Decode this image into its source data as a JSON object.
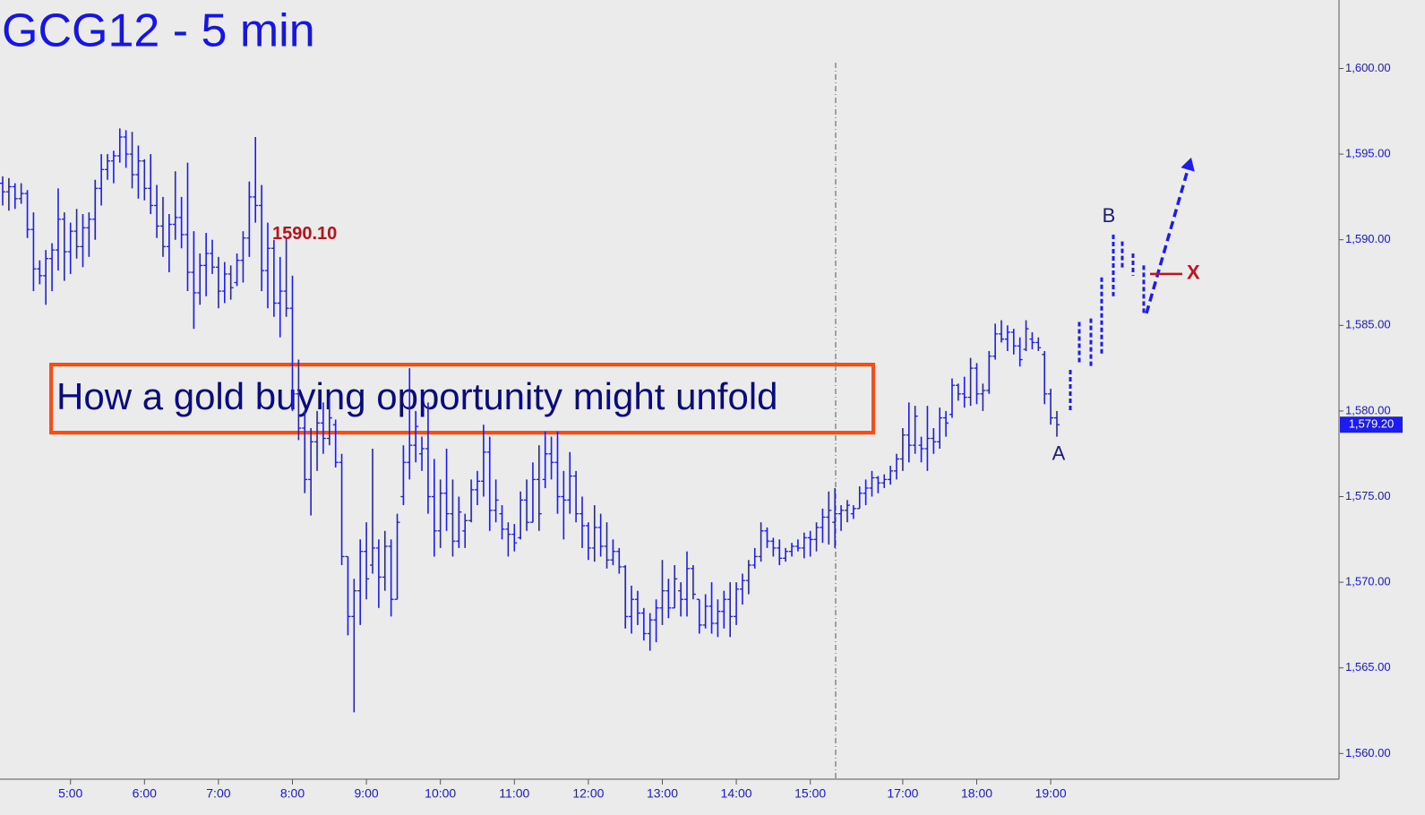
{
  "chart_data": {
    "type": "ohlc",
    "title": "GCG12 - 5 min",
    "annotation": "How a gold buying opportunity might unfold",
    "color": "#1c1cf0",
    "categories": [
      null,
      null,
      null,
      null,
      null,
      null,
      null,
      null,
      null,
      null,
      null,
      "5:00",
      null,
      null,
      null,
      null,
      null,
      null,
      null,
      null,
      null,
      null,
      null,
      "6:00",
      null,
      null,
      null,
      null,
      null,
      null,
      null,
      null,
      null,
      null,
      null,
      "7:00",
      null,
      null,
      null,
      null,
      null,
      null,
      null,
      null,
      null,
      null,
      null,
      "8:00",
      null,
      null,
      null,
      null,
      null,
      null,
      null,
      null,
      null,
      null,
      null,
      "9:00",
      null,
      null,
      null,
      null,
      null,
      null,
      null,
      null,
      null,
      null,
      null,
      "10:00",
      null,
      null,
      null,
      null,
      null,
      null,
      null,
      null,
      null,
      null,
      null,
      "11:00",
      null,
      null,
      null,
      null,
      null,
      null,
      null,
      null,
      null,
      null,
      null,
      "12:00",
      null,
      null,
      null,
      null,
      null,
      null,
      null,
      null,
      null,
      null,
      null,
      "13:00",
      null,
      null,
      null,
      null,
      null,
      null,
      null,
      null,
      null,
      null,
      null,
      "14:00",
      null,
      null,
      null,
      null,
      null,
      null,
      null,
      null,
      null,
      null,
      null,
      "15:00",
      null,
      null,
      null,
      null,
      null,
      null,
      null,
      null,
      null,
      null,
      null,
      null,
      null,
      null,
      "17:00",
      null,
      null,
      null,
      null,
      null,
      null,
      null,
      null,
      null,
      null,
      null,
      "18:00",
      null,
      null,
      null,
      null,
      null,
      null,
      null,
      null,
      null,
      null,
      null,
      "19:00",
      null
    ],
    "bars": [
      [
        1593.3,
        1593.7,
        1592.0,
        1592.8
      ],
      [
        1592.8,
        1593.6,
        1591.7,
        1593.1
      ],
      [
        1593.1,
        1593.3,
        1591.8,
        1592.4
      ],
      [
        1592.4,
        1593.3,
        1592.1,
        1592.7
      ],
      [
        1592.7,
        1592.9,
        1590.1,
        1590.6
      ],
      [
        1590.6,
        1591.6,
        1587.0,
        1588.3
      ],
      [
        1588.3,
        1588.8,
        1587.4,
        1587.9
      ],
      [
        1587.9,
        1589.4,
        1586.2,
        1588.9
      ],
      [
        1588.9,
        1589.8,
        1587.0,
        1589.4
      ],
      [
        1589.4,
        1593.0,
        1588.2,
        1591.2
      ],
      [
        1591.2,
        1591.6,
        1587.6,
        1589.3
      ],
      [
        1589.3,
        1591.0,
        1588.0,
        1590.5
      ],
      [
        1590.5,
        1591.8,
        1588.9,
        1589.6
      ],
      [
        1589.6,
        1591.5,
        1588.4,
        1590.7
      ],
      [
        1590.7,
        1591.6,
        1589.0,
        1591.2
      ],
      [
        1591.2,
        1593.5,
        1590.0,
        1593.0
      ],
      [
        1593.0,
        1595.0,
        1592.0,
        1594.1
      ],
      [
        1594.1,
        1595.0,
        1593.5,
        1594.6
      ],
      [
        1594.6,
        1595.2,
        1593.3,
        1594.9
      ],
      [
        1594.9,
        1596.5,
        1594.5,
        1596.0
      ],
      [
        1596.0,
        1596.4,
        1594.2,
        1595.0
      ],
      [
        1595.0,
        1596.3,
        1593.0,
        1593.8
      ],
      [
        1593.8,
        1595.5,
        1592.4,
        1594.6
      ],
      [
        1594.6,
        1594.7,
        1592.3,
        1593.0
      ],
      [
        1593.0,
        1595.0,
        1591.5,
        1592.0
      ],
      [
        1592.0,
        1593.2,
        1590.1,
        1590.8
      ],
      [
        1590.8,
        1592.5,
        1589.0,
        1589.6
      ],
      [
        1589.6,
        1591.5,
        1588.1,
        1590.9
      ],
      [
        1590.9,
        1594.0,
        1590.0,
        1591.3
      ],
      [
        1591.3,
        1592.5,
        1589.5,
        1590.3
      ],
      [
        1590.3,
        1594.5,
        1587.0,
        1588.1
      ],
      [
        1588.1,
        1590.5,
        1584.8,
        1586.9
      ],
      [
        1586.9,
        1589.2,
        1586.2,
        1588.5
      ],
      [
        1588.5,
        1590.4,
        1586.7,
        1589.2
      ],
      [
        1589.2,
        1590.0,
        1588.0,
        1588.4
      ],
      [
        1588.4,
        1589.0,
        1586.0,
        1587.0
      ],
      [
        1587.0,
        1588.7,
        1586.3,
        1588.0
      ],
      [
        1588.0,
        1588.5,
        1586.5,
        1587.2
      ],
      [
        1587.5,
        1589.2,
        1587.3,
        1588.8
      ],
      [
        1588.8,
        1590.5,
        1587.5,
        1590.1
      ],
      [
        1590.1,
        1593.4,
        1589.0,
        1592.5
      ],
      [
        1592.5,
        1596.0,
        1591.0,
        1592.0
      ],
      [
        1592.0,
        1593.2,
        1587.0,
        1588.2
      ],
      [
        1588.2,
        1591.0,
        1586.0,
        1589.5
      ],
      [
        1589.5,
        1590.0,
        1585.5,
        1586.3
      ],
      [
        1586.3,
        1589.0,
        1584.3,
        1587.0
      ],
      [
        1587.0,
        1590.1,
        1585.5,
        1586.0
      ],
      [
        1586.0,
        1587.9,
        1580.0,
        1581.0
      ],
      [
        1581.0,
        1583.0,
        1578.3,
        1579.0
      ],
      [
        1579.0,
        1580.0,
        1575.2,
        1576.0
      ],
      [
        1576.0,
        1579.0,
        1573.9,
        1578.2
      ],
      [
        1578.2,
        1580.0,
        1576.5,
        1579.3
      ],
      [
        1579.3,
        1580.5,
        1577.5,
        1578.4
      ],
      [
        1578.4,
        1580.8,
        1578.0,
        1579.6
      ],
      [
        1579.2,
        1579.5,
        1576.7,
        1577.0
      ],
      [
        1577.0,
        1577.5,
        1571.0,
        1571.5
      ],
      [
        1571.5,
        1571.5,
        1566.9,
        1568.0
      ],
      [
        1568.0,
        1570.2,
        1562.4,
        1569.5
      ],
      [
        1569.5,
        1572.5,
        1567.5,
        1571.8
      ],
      [
        1571.8,
        1573.5,
        1569.0,
        1570.2
      ],
      [
        1571.0,
        1577.8,
        1570.5,
        1572.0
      ],
      [
        1572.0,
        1572.5,
        1568.5,
        1570.3
      ],
      [
        1570.3,
        1573.0,
        1569.5,
        1572.1
      ],
      [
        1572.1,
        1572.5,
        1568.0,
        1569.0
      ],
      [
        1569.0,
        1574.0,
        1569.0,
        1573.5
      ],
      [
        1575.0,
        1578.0,
        1574.5,
        1577.0
      ],
      [
        1577.0,
        1582.5,
        1576.0,
        1578.0
      ],
      [
        1578.0,
        1580.0,
        1577.0,
        1579.1
      ],
      [
        1577.5,
        1578.5,
        1576.5,
        1577.8
      ],
      [
        1577.8,
        1580.5,
        1574.0,
        1575.0
      ],
      [
        1575.0,
        1577.2,
        1571.5,
        1573.0
      ],
      [
        1573.0,
        1576.0,
        1572.0,
        1575.2
      ],
      [
        1575.2,
        1577.8,
        1573.0,
        1574.0
      ],
      [
        1574.0,
        1576.0,
        1571.5,
        1572.4
      ],
      [
        1572.4,
        1575.0,
        1572.0,
        1574.1
      ],
      [
        1573.0,
        1574.0,
        1572.0,
        1573.6
      ],
      [
        1573.6,
        1576.0,
        1573.5,
        1575.4
      ],
      [
        1575.4,
        1576.5,
        1574.5,
        1575.9
      ],
      [
        1575.9,
        1579.2,
        1575.0,
        1577.6
      ],
      [
        1577.6,
        1578.5,
        1573.0,
        1574.2
      ],
      [
        1574.2,
        1576.0,
        1573.5,
        1574.8
      ],
      [
        1574.0,
        1574.5,
        1572.5,
        1573.1
      ],
      [
        1573.1,
        1573.5,
        1571.5,
        1572.8
      ],
      [
        1572.8,
        1573.4,
        1571.8,
        1572.3
      ],
      [
        1572.6,
        1575.3,
        1572.5,
        1574.8
      ],
      [
        1574.8,
        1576.0,
        1573.0,
        1573.5
      ],
      [
        1573.5,
        1577.0,
        1573.5,
        1576.0
      ],
      [
        1576.0,
        1578.0,
        1573.0,
        1574.0
      ],
      [
        1576.0,
        1578.8,
        1575.5,
        1577.5
      ],
      [
        1577.5,
        1578.5,
        1576.0,
        1577.0
      ],
      [
        1577.0,
        1578.8,
        1574.0,
        1575.0
      ],
      [
        1575.0,
        1576.5,
        1572.5,
        1574.8
      ],
      [
        1574.8,
        1577.6,
        1574.0,
        1576.2
      ],
      [
        1576.2,
        1576.5,
        1573.5,
        1574.0
      ],
      [
        1574.0,
        1575.0,
        1572.0,
        1573.3
      ],
      [
        1573.3,
        1573.5,
        1571.3,
        1572.0
      ],
      [
        1572.0,
        1574.5,
        1571.2,
        1573.2
      ],
      [
        1573.2,
        1574.0,
        1571.5,
        1572.1
      ],
      [
        1572.1,
        1573.5,
        1570.8,
        1571.3
      ],
      [
        1571.3,
        1572.5,
        1571.0,
        1571.8
      ],
      [
        1571.8,
        1572.0,
        1570.5,
        1570.9
      ],
      [
        1570.9,
        1571.0,
        1567.3,
        1568.0
      ],
      [
        1568.0,
        1569.8,
        1567.0,
        1569.0
      ],
      [
        1569.0,
        1569.5,
        1567.5,
        1568.2
      ],
      [
        1568.2,
        1568.5,
        1566.6,
        1567.0
      ],
      [
        1567.0,
        1568.2,
        1566.0,
        1567.8
      ],
      [
        1567.8,
        1569.0,
        1566.5,
        1568.5
      ],
      [
        1568.5,
        1571.3,
        1567.5,
        1569.5
      ],
      [
        1569.5,
        1570.2,
        1567.9,
        1568.5
      ],
      [
        1568.5,
        1571.0,
        1568.5,
        1570.2
      ],
      [
        1569.5,
        1570.0,
        1568.0,
        1569.0
      ],
      [
        1569.0,
        1571.8,
        1568.0,
        1570.8
      ],
      [
        1570.8,
        1571.0,
        1569.0,
        1569.3
      ],
      [
        1569.0,
        1569.0,
        1567.0,
        1567.5
      ],
      [
        1567.5,
        1569.3,
        1567.3,
        1568.6
      ],
      [
        1568.6,
        1570.0,
        1567.0,
        1567.6
      ],
      [
        1567.6,
        1569.0,
        1566.8,
        1568.3
      ],
      [
        1568.3,
        1569.5,
        1567.3,
        1569.0
      ],
      [
        1569.0,
        1570.0,
        1566.8,
        1568.0
      ],
      [
        1568.0,
        1570.0,
        1567.5,
        1569.6
      ],
      [
        1569.6,
        1570.5,
        1568.7,
        1570.1
      ],
      [
        1570.1,
        1571.3,
        1569.3,
        1571.0
      ],
      [
        1571.0,
        1572.0,
        1570.8,
        1571.5
      ],
      [
        1571.5,
        1573.5,
        1571.2,
        1573.0
      ],
      [
        1573.0,
        1573.2,
        1572.0,
        1572.4
      ],
      [
        1572.4,
        1572.6,
        1571.5,
        1572.0
      ],
      [
        1572.0,
        1572.5,
        1571.0,
        1571.4
      ],
      [
        1571.4,
        1572.0,
        1571.2,
        1571.8
      ],
      [
        1571.8,
        1572.3,
        1571.5,
        1572.1
      ],
      [
        1572.1,
        1572.5,
        1571.8,
        1572.0
      ],
      [
        1572.0,
        1572.9,
        1571.4,
        1572.6
      ],
      [
        1572.6,
        1573.0,
        1571.5,
        1572.5
      ],
      [
        1572.5,
        1573.5,
        1571.8,
        1573.2
      ],
      [
        1573.2,
        1574.3,
        1572.3,
        1573.8
      ],
      [
        1573.8,
        1575.3,
        1572.2,
        1574.2
      ],
      [
        1573.5,
        1575.5,
        1572.0,
        1574.0
      ],
      [
        1574.0,
        1574.5,
        1573.0,
        1574.2
      ],
      [
        1574.2,
        1574.8,
        1573.5,
        1574.5
      ],
      [
        1574.0,
        1574.5,
        1573.7,
        1574.3
      ],
      [
        1574.3,
        1575.6,
        1574.3,
        1575.2
      ],
      [
        1575.2,
        1576.0,
        1574.5,
        1575.5
      ],
      [
        1575.5,
        1576.5,
        1575.0,
        1576.1
      ],
      [
        1576.1,
        1576.2,
        1575.2,
        1575.8
      ],
      [
        1575.8,
        1576.3,
        1575.5,
        1576.0
      ],
      [
        1576.0,
        1576.8,
        1575.7,
        1576.5
      ],
      [
        1576.5,
        1577.5,
        1576.0,
        1577.2
      ],
      [
        1577.2,
        1579.0,
        1576.5,
        1578.6
      ],
      [
        1578.6,
        1580.5,
        1577.0,
        1578.0
      ],
      [
        1578.0,
        1580.3,
        1577.5,
        1579.7
      ],
      [
        1578.0,
        1578.5,
        1577.0,
        1577.8
      ],
      [
        1577.8,
        1580.3,
        1576.5,
        1578.4
      ],
      [
        1578.4,
        1579.0,
        1577.5,
        1578.2
      ],
      [
        1578.2,
        1580.2,
        1577.8,
        1579.6
      ],
      [
        1579.6,
        1580.0,
        1578.5,
        1579.3
      ],
      [
        1579.8,
        1581.9,
        1579.6,
        1581.5
      ],
      [
        1581.5,
        1581.6,
        1580.6,
        1581.0
      ],
      [
        1581.0,
        1582.0,
        1580.2,
        1580.8
      ],
      [
        1580.8,
        1583.1,
        1580.3,
        1582.5
      ],
      [
        1582.5,
        1582.8,
        1580.4,
        1581.0
      ],
      [
        1581.0,
        1581.6,
        1580.0,
        1581.2
      ],
      [
        1581.2,
        1583.5,
        1581.0,
        1583.2
      ],
      [
        1583.2,
        1585.1,
        1583.0,
        1584.5
      ],
      [
        1584.5,
        1585.3,
        1584.0,
        1584.2
      ],
      [
        1584.2,
        1585.0,
        1583.5,
        1584.6
      ],
      [
        1584.6,
        1584.8,
        1583.3,
        1583.8
      ],
      [
        1583.8,
        1584.3,
        1582.6,
        1583.0
      ],
      [
        1583.6,
        1585.3,
        1583.5,
        1584.8
      ],
      [
        1584.2,
        1584.6,
        1583.6,
        1584.0
      ],
      [
        1584.0,
        1584.3,
        1583.5,
        1583.7
      ],
      [
        1583.3,
        1583.5,
        1580.4,
        1581.0
      ],
      [
        1581.0,
        1581.3,
        1579.2,
        1579.6
      ],
      [
        1579.6,
        1580.0,
        1578.5,
        1579.2
      ]
    ],
    "projection": [
      [
        1582.4,
        1579.9
      ],
      [
        1585.2,
        1582.8
      ],
      [
        1585.4,
        1582.5
      ],
      [
        1587.8,
        1583.3
      ],
      [
        1590.3,
        1586.7
      ],
      [
        1589.9,
        1588.3
      ],
      [
        1589.2,
        1587.9
      ],
      [
        1588.5,
        1585.7
      ]
    ],
    "projection_arrow": [
      1585.7,
      1594.8
    ],
    "high_label": {
      "value": 1590.1,
      "label": "1590.10"
    },
    "point_a": "A",
    "point_b": "B",
    "stop": {
      "value": 1588.0,
      "label": "X"
    },
    "last_price": {
      "value": 1579.2,
      "label": "1,579.20"
    },
    "ylim": [
      1558.5,
      1604
    ],
    "yticks": [
      {
        "value": 1560,
        "label": "1,560.00"
      },
      {
        "value": 1565,
        "label": "1,565.00"
      },
      {
        "value": 1570,
        "label": "1,570.00"
      },
      {
        "value": 1575,
        "label": "1,575.00"
      },
      {
        "value": 1580,
        "label": "1,580.00"
      },
      {
        "value": 1585,
        "label": "1,585.00"
      },
      {
        "value": 1590,
        "label": "1,590.00"
      },
      {
        "value": 1595,
        "label": "1,595.00"
      },
      {
        "value": 1600,
        "label": "1,600.00"
      }
    ]
  }
}
